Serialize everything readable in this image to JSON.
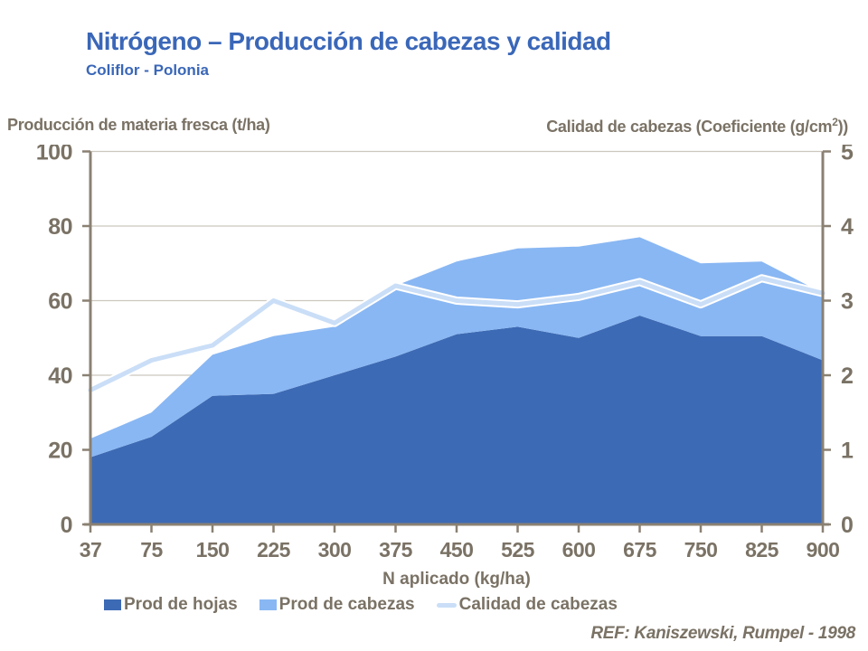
{
  "slide": {
    "title": "Nitrógeno – Producción de cabezas y calidad",
    "subtitle": "Coliflor - Polonia",
    "reference": "REF: Kaniszewski, Rumpel - 1998"
  },
  "axes": {
    "left_title": "Producción de materia fresca (t/ha)",
    "right_title_pre": "Calidad de cabezas (Coeficiente (g/cm",
    "right_title_sup": "2",
    "right_title_post": "))",
    "x_title": "N aplicado (kg/ha)",
    "left_ticks": [
      0,
      20,
      40,
      60,
      80,
      100
    ],
    "right_ticks": [
      0,
      1,
      2,
      3,
      4,
      5
    ]
  },
  "legend": {
    "items": [
      {
        "label": "Prod de hojas",
        "swatch": "area_dark"
      },
      {
        "label": "Prod de cabezas",
        "swatch": "area_light"
      },
      {
        "label": "Calidad de cabezas",
        "swatch": "line_pale"
      }
    ]
  },
  "colors": {
    "title_blue": "#3A67B8",
    "text_gray": "#7A7265",
    "area_dark": "#3D6AB4",
    "area_light": "#89B7F3",
    "line_pale": "#CADEF7",
    "line_halo": "#FFFFFF",
    "grid": "#CCC8BE",
    "axis": "#8A8173",
    "background": "#FFFFFF"
  },
  "chart_data": {
    "type": "area",
    "title": "Nitrógeno – Producción de cabezas y calidad (Coliflor - Polonia)",
    "xlabel": "N aplicado (kg/ha)",
    "ylabel_left": "Producción de materia fresca (t/ha)",
    "ylabel_right": "Calidad de cabezas (Coeficiente (g/cm2))",
    "categories": [
      37,
      75,
      150,
      225,
      300,
      375,
      450,
      525,
      600,
      675,
      750,
      825,
      900
    ],
    "left_axis_range": [
      0,
      100
    ],
    "right_axis_range": [
      0,
      5
    ],
    "grid": true,
    "legend_position": "bottom",
    "series": [
      {
        "name": "Prod de hojas",
        "type": "area",
        "stack": true,
        "axis": "left",
        "values": [
          18,
          23.5,
          34.5,
          35,
          40,
          45,
          51,
          53,
          50,
          56,
          50.5,
          50.5,
          44
        ]
      },
      {
        "name": "Prod de cabezas",
        "type": "area",
        "stack": true,
        "axis": "left",
        "values": [
          5,
          6.5,
          11,
          15.5,
          13,
          19,
          19.5,
          21,
          24.5,
          21,
          19.5,
          20,
          18
        ],
        "stacked_totals": [
          23,
          30,
          45.5,
          50.5,
          53,
          64,
          70.5,
          74,
          74.5,
          77,
          70,
          70.5,
          62
        ]
      },
      {
        "name": "Calidad de cabezas",
        "type": "line",
        "axis": "right",
        "values": [
          1.8,
          2.2,
          2.4,
          3.0,
          2.7,
          3.2,
          3.0,
          2.95,
          3.05,
          3.25,
          2.95,
          3.3,
          3.1
        ]
      }
    ]
  }
}
